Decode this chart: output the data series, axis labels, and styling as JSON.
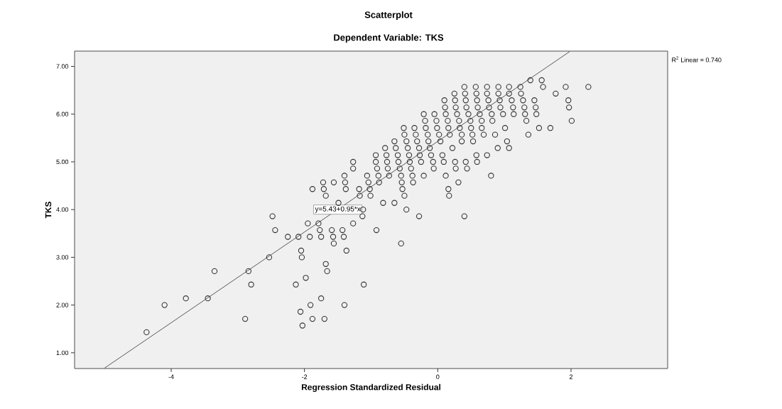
{
  "chart_data": {
    "type": "scatter",
    "title": "Scatterplot",
    "subtitle": "Dependent Variable: TKS",
    "xlabel": "Regression Standardized Residual",
    "ylabel": "TKS",
    "xlim": [
      -5.45,
      3.45
    ],
    "ylim": [
      0.67,
      7.32
    ],
    "xticks": [
      -4,
      -2,
      0,
      2
    ],
    "yticks": [
      {
        "value": 1,
        "label": "1.00"
      },
      {
        "value": 2,
        "label": "2.00"
      },
      {
        "value": 3,
        "label": "3.00"
      },
      {
        "value": 4,
        "label": "4.00"
      },
      {
        "value": 5,
        "label": "5.00"
      },
      {
        "value": 6,
        "label": "6.00"
      },
      {
        "value": 7,
        "label": "7.00"
      }
    ],
    "marker": "circle",
    "annotations": [
      {
        "text": "y=5.43+0.95*x",
        "x": -1.5,
        "y": 4.0
      },
      "R$^{2}$ Linear = 0.740"
    ],
    "series": [
      {
        "color": "#333333",
        "x": [
          1.39,
          1.56,
          0.4,
          0.57,
          0.74,
          0.91,
          1.07,
          1.24,
          1.58,
          1.92,
          2.26,
          0.25,
          0.41,
          0.58,
          0.74,
          0.91,
          1.07,
          1.25,
          1.77,
          0.1,
          0.26,
          0.42,
          0.59,
          0.76,
          0.93,
          1.11,
          1.28,
          1.45,
          1.96,
          0.11,
          0.27,
          0.43,
          0.6,
          0.77,
          0.94,
          1.13,
          1.3,
          1.47,
          1.97,
          -0.21,
          -0.05,
          0.12,
          0.29,
          0.46,
          0.63,
          0.81,
          0.98,
          1.14,
          1.31,
          1.48,
          -0.19,
          -0.02,
          0.15,
          0.32,
          0.49,
          0.66,
          0.82,
          1.33,
          2.01,
          -0.51,
          -0.35,
          -0.18,
          -0.01,
          0.16,
          0.33,
          0.5,
          0.66,
          1.01,
          1.52,
          1.69,
          -0.5,
          -0.33,
          -0.15,
          0.02,
          0.18,
          0.36,
          0.52,
          0.69,
          0.86,
          1.36,
          -0.65,
          -0.47,
          -0.31,
          -0.14,
          0.04,
          0.36,
          0.53,
          1.04,
          -0.79,
          -0.63,
          -0.45,
          -0.28,
          -0.12,
          0.22,
          0.9,
          1.07,
          -0.93,
          -0.77,
          -0.6,
          -0.43,
          -0.27,
          -0.1,
          0.07,
          0.58,
          0.74,
          -1.27,
          -0.93,
          -0.76,
          -0.59,
          -0.42,
          -0.25,
          -0.07,
          0.09,
          0.26,
          0.42,
          0.59,
          -1.27,
          -0.91,
          -0.75,
          -0.57,
          -0.4,
          -0.06,
          0.27,
          0.44,
          -1.4,
          -1.06,
          -0.89,
          -0.73,
          -0.55,
          -0.38,
          -0.21,
          0.12,
          0.8,
          -1.72,
          -1.56,
          -1.39,
          -1.04,
          -0.88,
          -0.54,
          -0.37,
          0.31,
          -1.88,
          -1.71,
          -1.38,
          -1.18,
          -1.02,
          -0.53,
          0.16,
          -1.68,
          -1.17,
          -1.01,
          -0.5,
          0.17,
          -1.49,
          -0.82,
          -0.65,
          -1.12,
          -0.47,
          -2.48,
          -1.13,
          -0.28,
          0.4,
          -1.95,
          -1.79,
          -1.27,
          -2.44,
          -1.77,
          -1.59,
          -1.43,
          -0.92,
          -2.25,
          -2.09,
          -1.92,
          -1.75,
          -1.57,
          -1.41,
          -1.56,
          -0.55,
          -2.05,
          -1.37,
          -2.53,
          -2.04,
          -1.68,
          -3.35,
          -2.84,
          -1.66,
          -1.98,
          -2.8,
          -2.13,
          -1.11,
          -3.78,
          -3.45,
          -1.75,
          -4.1,
          -1.91,
          -1.4,
          -2.06,
          -2.89,
          -1.88,
          -1.7,
          -2.03,
          -4.37
        ],
        "values": [
          6.71,
          6.71,
          6.57,
          6.57,
          6.57,
          6.57,
          6.57,
          6.57,
          6.57,
          6.57,
          6.57,
          6.43,
          6.43,
          6.43,
          6.43,
          6.43,
          6.43,
          6.43,
          6.43,
          6.29,
          6.29,
          6.29,
          6.29,
          6.29,
          6.29,
          6.29,
          6.29,
          6.29,
          6.29,
          6.14,
          6.14,
          6.14,
          6.14,
          6.14,
          6.14,
          6.14,
          6.14,
          6.14,
          6.14,
          6.0,
          6.0,
          6.0,
          6.0,
          6.0,
          6.0,
          6.0,
          6.0,
          6.0,
          6.0,
          6.0,
          5.86,
          5.86,
          5.86,
          5.86,
          5.86,
          5.86,
          5.86,
          5.86,
          5.86,
          5.71,
          5.71,
          5.71,
          5.71,
          5.71,
          5.71,
          5.71,
          5.71,
          5.71,
          5.71,
          5.71,
          5.57,
          5.57,
          5.57,
          5.57,
          5.57,
          5.57,
          5.57,
          5.57,
          5.57,
          5.57,
          5.43,
          5.43,
          5.43,
          5.43,
          5.43,
          5.43,
          5.43,
          5.43,
          5.29,
          5.29,
          5.29,
          5.29,
          5.29,
          5.29,
          5.29,
          5.29,
          5.14,
          5.14,
          5.14,
          5.14,
          5.14,
          5.14,
          5.14,
          5.14,
          5.14,
          5.0,
          5.0,
          5.0,
          5.0,
          5.0,
          5.0,
          5.0,
          5.0,
          5.0,
          5.0,
          5.0,
          4.86,
          4.86,
          4.86,
          4.86,
          4.86,
          4.86,
          4.86,
          4.86,
          4.71,
          4.71,
          4.71,
          4.71,
          4.71,
          4.71,
          4.71,
          4.71,
          4.71,
          4.57,
          4.57,
          4.57,
          4.57,
          4.57,
          4.57,
          4.57,
          4.57,
          4.43,
          4.43,
          4.43,
          4.43,
          4.43,
          4.43,
          4.43,
          4.29,
          4.29,
          4.29,
          4.29,
          4.29,
          4.14,
          4.14,
          4.14,
          4.0,
          4.0,
          3.86,
          3.86,
          3.86,
          3.86,
          3.71,
          3.71,
          3.71,
          3.57,
          3.57,
          3.57,
          3.57,
          3.57,
          3.43,
          3.43,
          3.43,
          3.43,
          3.43,
          3.43,
          3.29,
          3.29,
          3.14,
          3.14,
          3.0,
          3.0,
          2.86,
          2.71,
          2.71,
          2.71,
          2.57,
          2.43,
          2.43,
          2.43,
          2.14,
          2.14,
          2.14,
          2.0,
          2.0,
          2.0,
          1.86,
          1.71,
          1.71,
          1.71,
          1.57,
          1.43
        ]
      },
      {
        "type": "line",
        "marker": "none",
        "color": "#333333",
        "x": [
          -5.0,
          1.98
        ],
        "values": [
          0.68,
          7.31
        ]
      }
    ]
  }
}
